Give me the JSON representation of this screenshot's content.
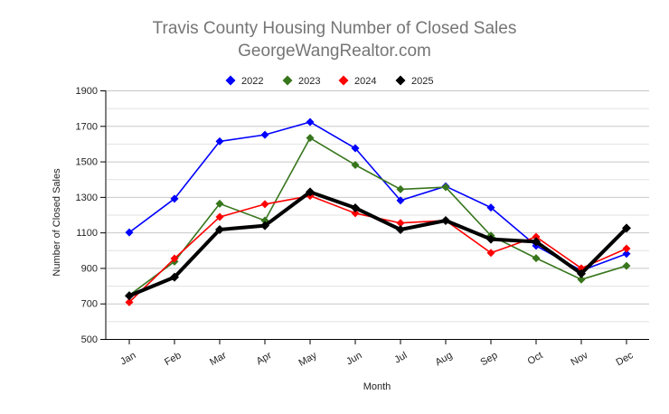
{
  "chart_data": {
    "type": "line",
    "title": "Travis County Housing Number of Closed Sales",
    "subtitle": "GeorgeWangRealtor.com",
    "xlabel": "Month",
    "ylabel": "Number of Closed Sales",
    "categories": [
      "Jan",
      "Feb",
      "Mar",
      "Apr",
      "May",
      "Jun",
      "Jul",
      "Aug",
      "Sep",
      "Oct",
      "Nov",
      "Dec"
    ],
    "ylim": [
      500,
      1900
    ],
    "yticks": [
      500,
      700,
      900,
      1100,
      1300,
      1500,
      1700,
      1900
    ],
    "grid": true,
    "legend_position": "top",
    "series": [
      {
        "name": "2022",
        "color": "#0000ff",
        "values": [
          1100,
          1290,
          1613,
          1650,
          1722,
          1574,
          1280,
          1360,
          1240,
          1025,
          885,
          980
        ]
      },
      {
        "name": "2023",
        "color": "#38761d",
        "values": [
          746,
          936,
          1262,
          1167,
          1632,
          1480,
          1343,
          1355,
          1082,
          955,
          835,
          912
        ]
      },
      {
        "name": "2024",
        "color": "#ff0000",
        "values": [
          707,
          953,
          1187,
          1259,
          1306,
          1208,
          1153,
          1167,
          985,
          1075,
          898,
          1009
        ]
      },
      {
        "name": "2025",
        "color": "#000000",
        "values": [
          743,
          848,
          1116,
          1138,
          1328,
          1238,
          1116,
          1167,
          1062,
          1048,
          868,
          1124
        ]
      }
    ]
  }
}
